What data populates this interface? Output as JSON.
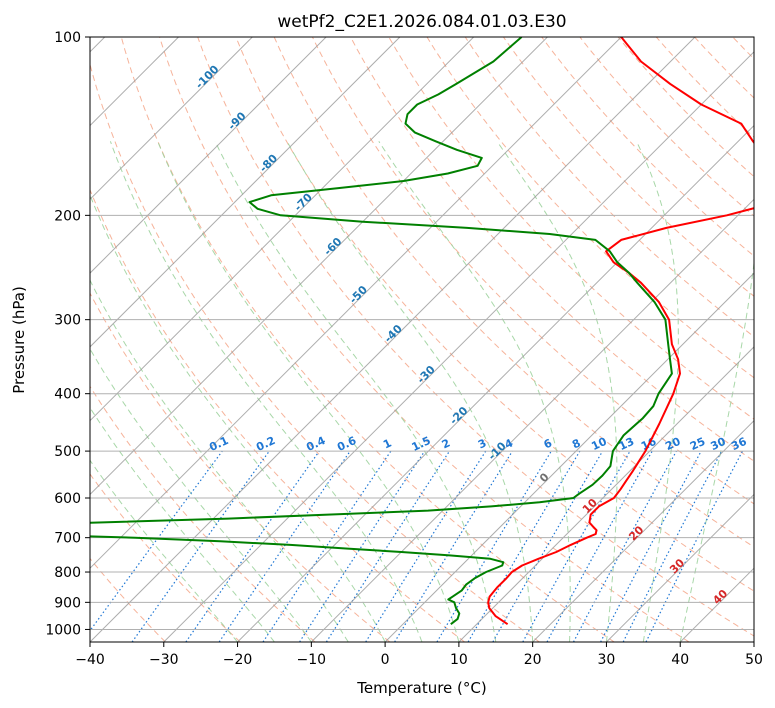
{
  "chart_data": {
    "type": "line",
    "subtype": "skew-t log-p diagram",
    "title": "wetPf2_C2E1.2026.084.01.03.E30",
    "xlabel": "Temperature (°C)",
    "ylabel": "Pressure (hPa)",
    "xlim": [
      -40,
      50
    ],
    "ylim": [
      1050,
      100
    ],
    "y_scale": "log",
    "grid": true,
    "x_ticks": [
      -40,
      -30,
      -20,
      -10,
      0,
      10,
      20,
      30,
      40,
      50
    ],
    "x_tick_labels": [
      "−40",
      "−30",
      "−20",
      "−10",
      "0",
      "10",
      "20",
      "30",
      "40",
      "50"
    ],
    "y_ticks": [
      1000,
      900,
      800,
      700,
      600,
      500,
      400,
      300,
      200,
      100
    ],
    "y_tick_labels": [
      "1000",
      "900",
      "800",
      "700",
      "600",
      "500",
      "400",
      "300",
      "200",
      "100"
    ],
    "colors": {
      "temperature": "#ff0000",
      "dewpoint": "#008000",
      "isotherm": "#999999",
      "dry_adiabat": "#f4a688",
      "moist_adiabat": "#9fd39f",
      "mixing_ratio": "#1f77d4",
      "annotation_blue": "#1f77b4",
      "annotation_red": "#d62728",
      "annotation_gray": "#707070"
    },
    "series": [
      {
        "points": [
          [
            980,
            14.2
          ],
          [
            950,
            11.5
          ],
          [
            920,
            9.5
          ],
          [
            900,
            8.6
          ],
          [
            880,
            8.0
          ],
          [
            850,
            7.8
          ],
          [
            820,
            7.8
          ],
          [
            800,
            7.7
          ],
          [
            780,
            8.2
          ],
          [
            760,
            9.5
          ],
          [
            740,
            11.0
          ],
          [
            720,
            12.0
          ],
          [
            700,
            13.2
          ],
          [
            690,
            13.9
          ],
          [
            680,
            13.5
          ],
          [
            670,
            12.5
          ],
          [
            660,
            11.5
          ],
          [
            640,
            10.6
          ],
          [
            620,
            10.6
          ],
          [
            600,
            11.5
          ],
          [
            580,
            11.2
          ],
          [
            560,
            10.8
          ],
          [
            540,
            10.4
          ],
          [
            520,
            9.9
          ],
          [
            500,
            9.4
          ],
          [
            450,
            7.6
          ],
          [
            400,
            5.4
          ],
          [
            370,
            3.6
          ],
          [
            350,
            1.4
          ],
          [
            330,
            -1.5
          ],
          [
            300,
            -5.2
          ],
          [
            280,
            -9.0
          ],
          [
            260,
            -14.0
          ],
          [
            250,
            -17.0
          ],
          [
            240,
            -20.5
          ],
          [
            230,
            -23.0
          ],
          [
            220,
            -22.5
          ],
          [
            210,
            -18.0
          ],
          [
            200,
            -11.5
          ],
          [
            190,
            -6.5
          ],
          [
            180,
            -5.5
          ],
          [
            170,
            -8.5
          ],
          [
            160,
            -14.0
          ],
          [
            150,
            -18.0
          ],
          [
            140,
            -22.0
          ],
          [
            130,
            -30.0
          ],
          [
            120,
            -37.0
          ],
          [
            110,
            -44.0
          ],
          [
            100,
            -50.0
          ]
        ]
      },
      {
        "points": [
          [
            980,
            6.5
          ],
          [
            960,
            6.7
          ],
          [
            940,
            6.2
          ],
          [
            920,
            5.0
          ],
          [
            900,
            4.0
          ],
          [
            890,
            2.8
          ],
          [
            880,
            3.0
          ],
          [
            860,
            3.4
          ],
          [
            840,
            3.2
          ],
          [
            820,
            3.5
          ],
          [
            800,
            4.2
          ],
          [
            780,
            5.5
          ],
          [
            770,
            5.2
          ],
          [
            760,
            3.0
          ],
          [
            750,
            -3.0
          ],
          [
            740,
            -10.0
          ],
          [
            730,
            -18.0
          ],
          [
            720,
            -26.0
          ],
          [
            710,
            -36.0
          ],
          [
            700,
            -48.0
          ],
          [
            690,
            -65.0
          ],
          [
            680,
            -80.0
          ],
          [
            670,
            -75.0
          ],
          [
            660,
            -55.0
          ],
          [
            650,
            -38.0
          ],
          [
            640,
            -25.0
          ],
          [
            630,
            -12.0
          ],
          [
            620,
            -4.0
          ],
          [
            610,
            2.0
          ],
          [
            600,
            6.0
          ],
          [
            590,
            6.2
          ],
          [
            570,
            6.8
          ],
          [
            550,
            6.9
          ],
          [
            530,
            6.7
          ],
          [
            500,
            5.0
          ],
          [
            470,
            4.3
          ],
          [
            440,
            4.6
          ],
          [
            420,
            4.4
          ],
          [
            400,
            3.4
          ],
          [
            370,
            2.5
          ],
          [
            350,
            0.3
          ],
          [
            330,
            -2.0
          ],
          [
            300,
            -5.7
          ],
          [
            280,
            -9.6
          ],
          [
            260,
            -14.5
          ],
          [
            250,
            -17.0
          ],
          [
            240,
            -20.0
          ],
          [
            230,
            -22.5
          ],
          [
            220,
            -26.0
          ],
          [
            215,
            -33.0
          ],
          [
            210,
            -45.0
          ],
          [
            205,
            -60.0
          ],
          [
            200,
            -72.0
          ],
          [
            195,
            -76.0
          ],
          [
            190,
            -78.0
          ],
          [
            185,
            -76.0
          ],
          [
            180,
            -68.0
          ],
          [
            175,
            -60.0
          ],
          [
            170,
            -55.0
          ],
          [
            165,
            -52.0
          ],
          [
            160,
            -52.5
          ],
          [
            155,
            -57.0
          ],
          [
            150,
            -61.0
          ],
          [
            145,
            -65.0
          ],
          [
            140,
            -67.5
          ],
          [
            135,
            -68.5
          ],
          [
            130,
            -68.5
          ],
          [
            125,
            -67.0
          ],
          [
            120,
            -66.0
          ],
          [
            110,
            -64.0
          ],
          [
            100,
            -63.5
          ]
        ]
      }
    ],
    "dry_adiabat_annotations": [
      "-100",
      "-90",
      "-80",
      "-70",
      "-60",
      "-50",
      "-40",
      "-30",
      "-20",
      "-10",
      "0",
      "10",
      "20",
      "30",
      "40"
    ],
    "mixing_ratio_labels": [
      "0.1",
      "0.2",
      "0.4",
      "0.6",
      "1",
      "1.5",
      "2",
      "3",
      "4",
      "6",
      "8",
      "10",
      "13",
      "16",
      "20",
      "25",
      "30",
      "36"
    ]
  }
}
